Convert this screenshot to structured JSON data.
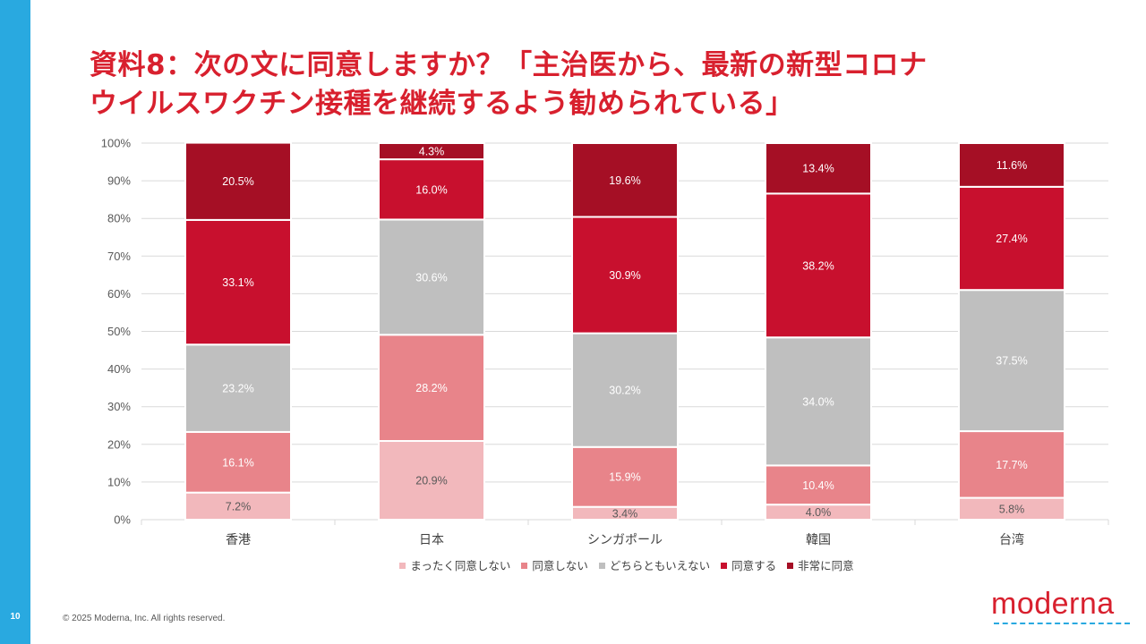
{
  "slide": {
    "page_number": "10",
    "title_line1": "資料8：次の文に同意しますか？「主治医から、最新の新型コロナ",
    "title_line2": "ウイルスワクチン接種を継続するよう勧められている」",
    "copyright": "© 2025 Moderna, Inc. All rights reserved.",
    "logo_text": "moderna"
  },
  "chart_data": {
    "type": "bar",
    "stacked": true,
    "orientation": "vertical",
    "categories": [
      "香港",
      "日本",
      "シンガポール",
      "韓国",
      "台湾"
    ],
    "series": [
      {
        "name": "まったく同意しない",
        "color": "#f2b8bc",
        "values": [
          7.2,
          20.9,
          3.4,
          4.0,
          5.8
        ],
        "labels": [
          "7.2%",
          "20.9%",
          "3.4%",
          "4.0%",
          "5.8%"
        ]
      },
      {
        "name": "同意しない",
        "color": "#e8848a",
        "values": [
          16.1,
          28.2,
          15.9,
          10.4,
          17.7
        ],
        "labels": [
          "16.1%",
          "28.2%",
          "15.9%",
          "10.4%",
          "17.7%"
        ]
      },
      {
        "name": "どちらともいえない",
        "color": "#bfbfbf",
        "values": [
          23.2,
          30.6,
          30.2,
          34.0,
          37.5
        ],
        "labels": [
          "23.2%",
          "30.6%",
          "30.2%",
          "34.0%",
          "37.5%"
        ]
      },
      {
        "name": "同意する",
        "color": "#c8102e",
        "values": [
          33.1,
          16.0,
          30.9,
          38.2,
          27.4
        ],
        "labels": [
          "33.1%",
          "16.0%",
          "30.9%",
          "38.2%",
          "27.4%"
        ]
      },
      {
        "name": "非常に同意",
        "color": "#a50f25",
        "values": [
          20.5,
          4.3,
          19.6,
          13.4,
          11.6
        ],
        "labels": [
          "20.5%",
          "4.3%",
          "19.6%",
          "13.4%",
          "11.6%"
        ]
      }
    ],
    "y_ticks": [
      "0%",
      "10%",
      "20%",
      "30%",
      "40%",
      "50%",
      "60%",
      "70%",
      "80%",
      "90%",
      "100%"
    ],
    "ylim": [
      0,
      100
    ],
    "grid": true,
    "legend_position": "bottom",
    "title": "",
    "xlabel": "",
    "ylabel": ""
  }
}
